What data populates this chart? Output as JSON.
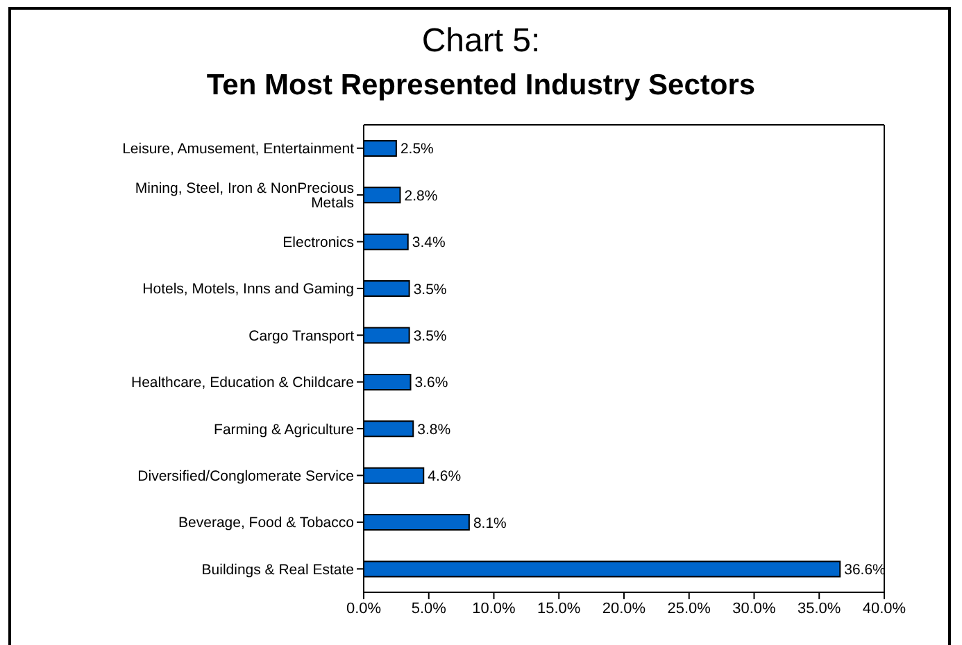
{
  "chart_data": {
    "type": "bar",
    "orientation": "horizontal",
    "title": "Chart 5:",
    "subtitle": "Ten Most Represented Industry Sectors",
    "categories": [
      "Leisure, Amusement, Entertainment",
      "Mining, Steel, Iron & NonPrecious Metals",
      "Electronics",
      "Hotels, Motels, Inns and Gaming",
      "Cargo Transport",
      "Healthcare, Education & Childcare",
      "Farming & Agriculture",
      "Diversified/Conglomerate Service",
      "Beverage, Food & Tobacco",
      "Buildings & Real Estate"
    ],
    "values": [
      2.5,
      2.8,
      3.4,
      3.5,
      3.5,
      3.6,
      3.8,
      4.6,
      8.1,
      36.6
    ],
    "value_labels": [
      "2.5%",
      "2.8%",
      "3.4%",
      "3.5%",
      "3.5%",
      "3.6%",
      "3.8%",
      "4.6%",
      "8.1%",
      "36.6%"
    ],
    "color": "#0066cc",
    "xlim": [
      0,
      40
    ],
    "xticks": [
      {
        "value": 0,
        "label": "0.0%"
      },
      {
        "value": 5,
        "label": "5.0%"
      },
      {
        "value": 10,
        "label": "10.0%"
      },
      {
        "value": 15,
        "label": "15.0%"
      },
      {
        "value": 20,
        "label": "20.0%"
      },
      {
        "value": 25,
        "label": "25.0%"
      },
      {
        "value": 30,
        "label": "30.0%"
      },
      {
        "value": 35,
        "label": "35.0%"
      },
      {
        "value": 40,
        "label": "40.0%"
      }
    ],
    "grid": false,
    "legend": false
  }
}
